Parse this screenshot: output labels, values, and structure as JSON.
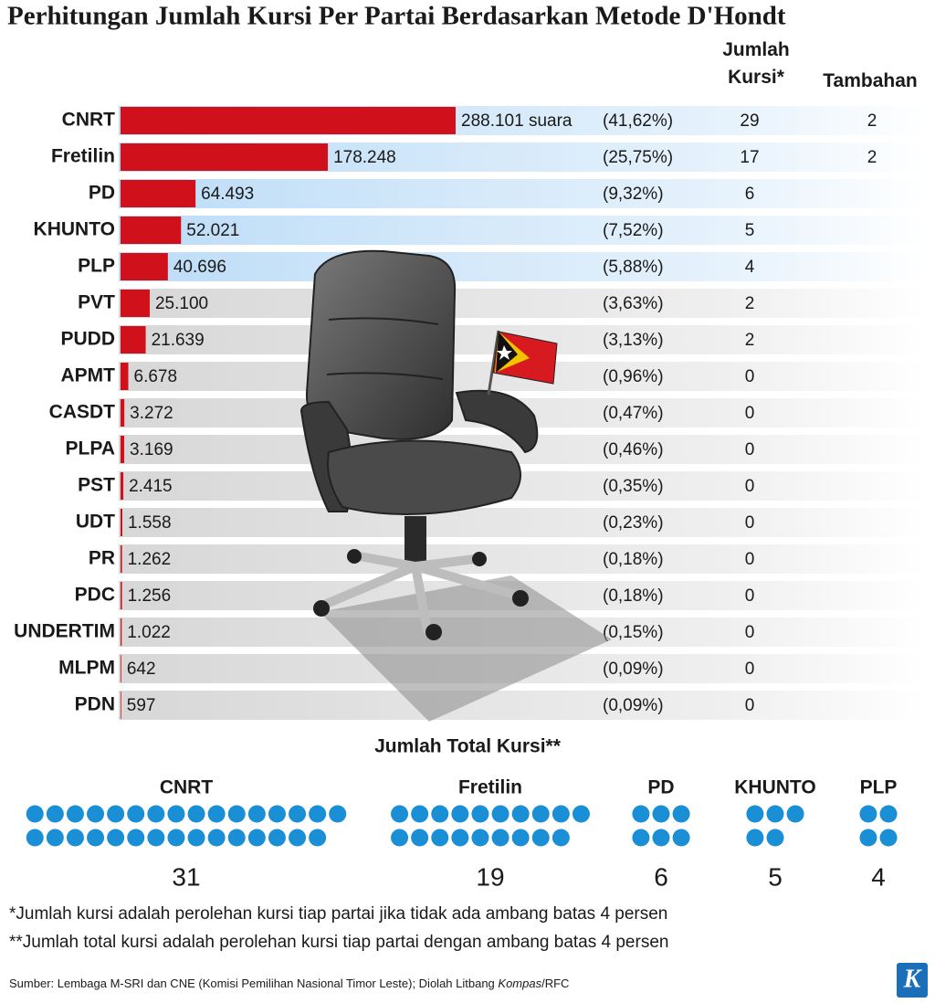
{
  "chart_data": {
    "type": "bar",
    "title": "Perhitungan Jumlah Kursi Per Partai Berdasarkan Metode D'Hondt",
    "categories": [
      "CNRT",
      "Fretilin",
      "PD",
      "KHUNTO",
      "PLP",
      "PVT",
      "PUDD",
      "APMT",
      "CASDT",
      "PLPA",
      "PST",
      "UDT",
      "PR",
      "PDC",
      "UNDERTIM",
      "MLPM",
      "PDN"
    ],
    "values": [
      288101,
      178248,
      64493,
      52021,
      40696,
      25100,
      21639,
      6678,
      3272,
      3169,
      2415,
      1558,
      1262,
      1256,
      1022,
      642,
      597
    ],
    "value_labels": [
      "288.101 suara",
      "178.248",
      "64.493",
      "52.021",
      "40.696",
      "25.100",
      "21.639",
      "6.678",
      "3.272",
      "3.169",
      "2.415",
      "1.558",
      "1.262",
      "1.256",
      "1.022",
      "642",
      "597"
    ],
    "color": "#d0101b",
    "shares": [
      41.62,
      25.75,
      9.32,
      7.52,
      5.88,
      3.63,
      3.13,
      0.96,
      0.47,
      0.46,
      0.35,
      0.23,
      0.18,
      0.18,
      0.15,
      0.09,
      0.09
    ],
    "share_labels": [
      "(41,62%)",
      "(25,75%)",
      "(9,32%)",
      "(7,52%)",
      "(5,88%)",
      "(3,63%)",
      "(3,13%)",
      "(0,96%)",
      "(0,47%)",
      "(0,46%)",
      "(0,35%)",
      "(0,23%)",
      "(0,18%)",
      "(0,18%)",
      "(0,15%)",
      "(0,09%)",
      "(0,09%)"
    ],
    "seats_header": "Jumlah Kursi*",
    "seats": [
      29,
      17,
      6,
      5,
      4,
      2,
      2,
      0,
      0,
      0,
      0,
      0,
      0,
      0,
      0,
      0,
      0
    ],
    "extra_header": "Tambahan",
    "extra": [
      2,
      2,
      null,
      null,
      null,
      null,
      null,
      null,
      null,
      null,
      null,
      null,
      null,
      null,
      null,
      null,
      null
    ],
    "totals": {
      "title": "Jumlah Total Kursi**",
      "categories": [
        "CNRT",
        "Fretilin",
        "PD",
        "KHUNTO",
        "PLP"
      ],
      "values": [
        31,
        19,
        6,
        5,
        4
      ],
      "color": "#1a8fd6"
    },
    "notes": [
      "*Jumlah kursi adalah perolehan kursi tiap partai jika tidak ada ambang batas 4 persen",
      "**Jumlah total kursi adalah perolehan kursi tiap partai dengan ambang batas 4 persen"
    ],
    "source": [
      "Sumber: Lembaga M-SRI dan CNE (Komisi Pemilihan Nasional Timor Leste); Diolah Litbang ",
      "Kompas",
      "/RFC"
    ],
    "logo": "K"
  }
}
